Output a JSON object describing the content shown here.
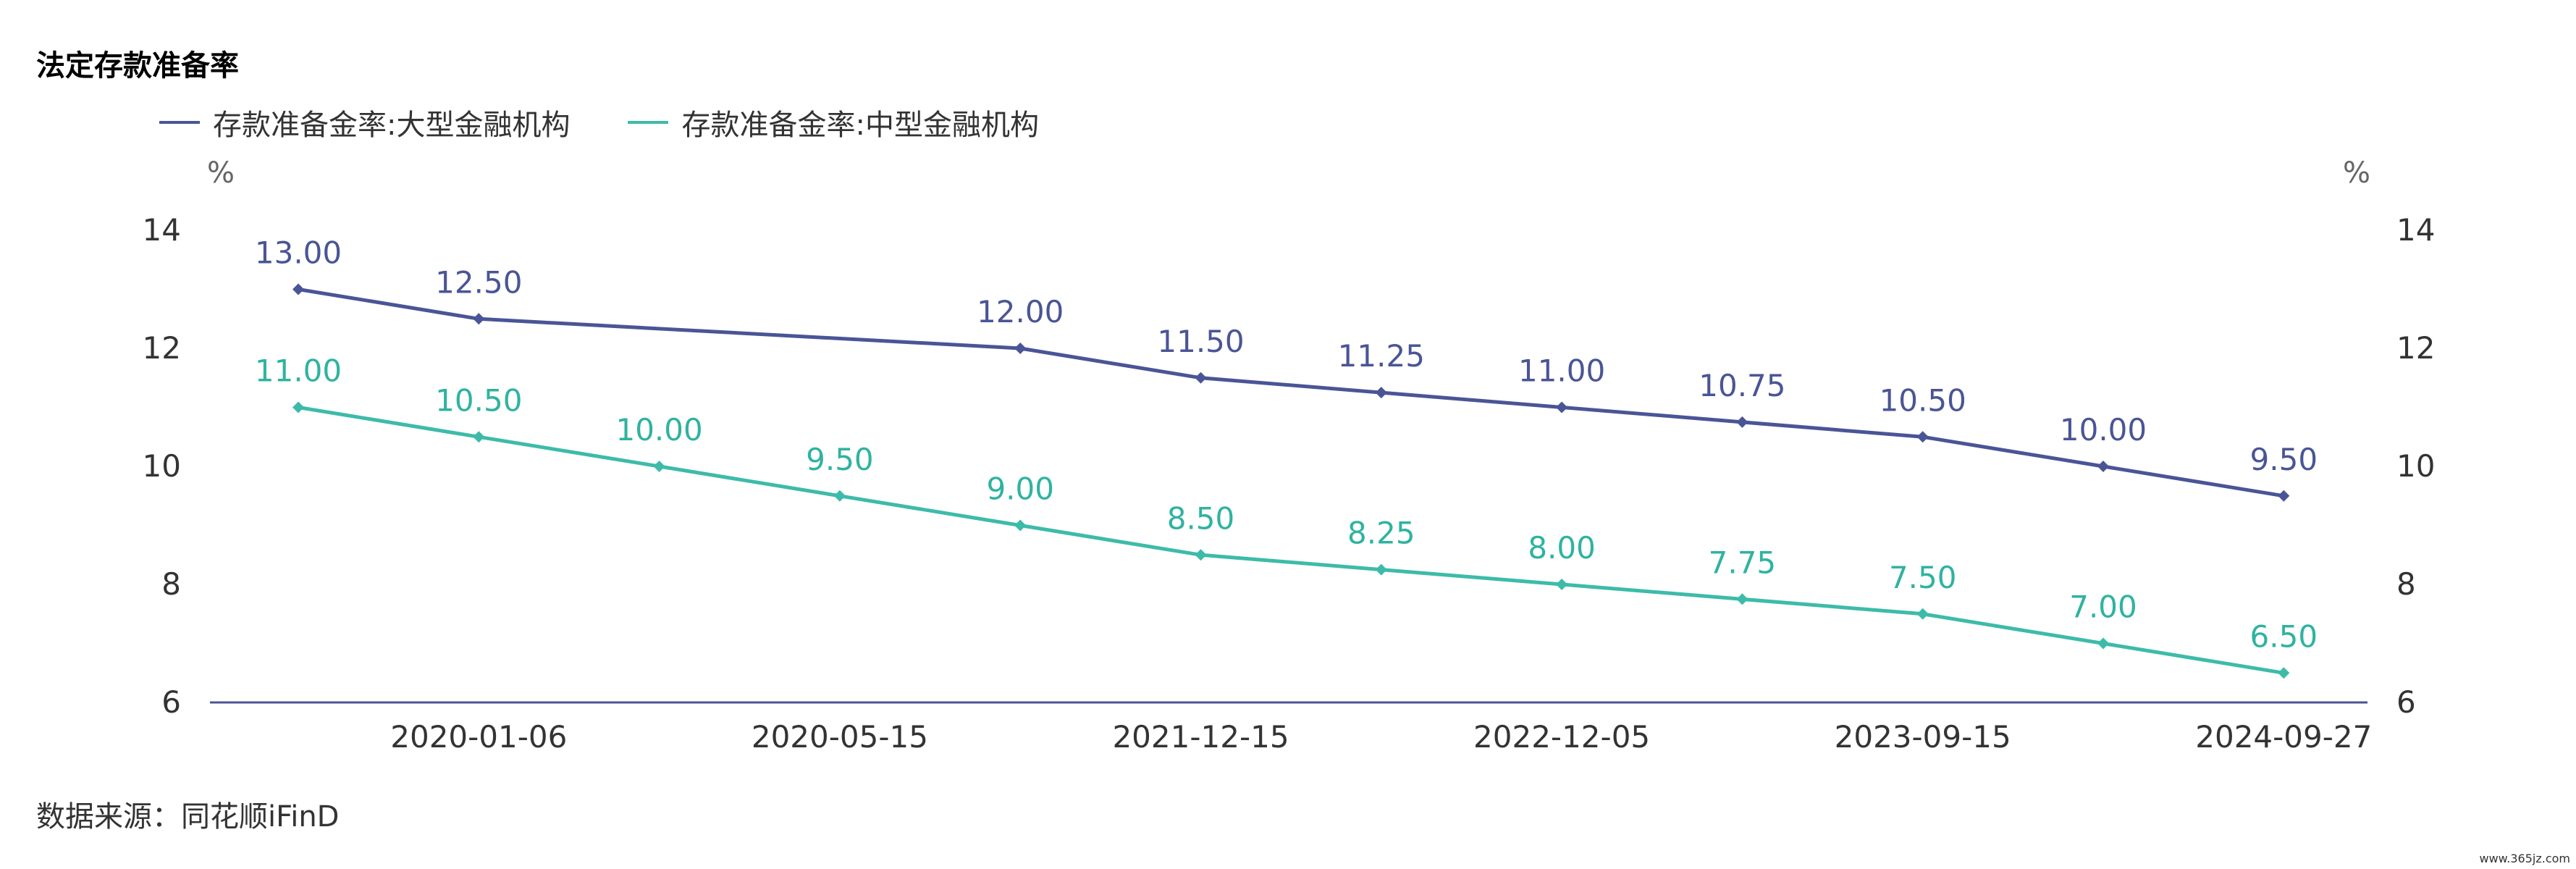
{
  "title": "法定存款准备率",
  "source_note": "数据来源：同花顺iFinD",
  "watermark": "www.365jz.com",
  "chart_data": {
    "type": "line",
    "title": "法定存款准备率",
    "ylabel_left": "%",
    "ylabel_right": "%",
    "ylim": [
      6,
      14
    ],
    "yticks": [
      6,
      8,
      10,
      12,
      14
    ],
    "x_tick_labels": [
      "2020-01-06",
      "2020-05-15",
      "2021-12-15",
      "2022-12-05",
      "2023-09-15",
      "2024-09-27"
    ],
    "x_tick_label_positions": [
      1,
      3,
      5,
      7,
      9,
      11
    ],
    "point_count": 12,
    "legend_position": "top-left",
    "grid": false,
    "series": [
      {
        "name": "存款准备金率:大型金融机构",
        "color": "#4a5596",
        "label_color": "#4a5596",
        "x": [
          0,
          1,
          4,
          5,
          6,
          7,
          8,
          9,
          10,
          11
        ],
        "values": [
          13.0,
          12.5,
          12.0,
          11.5,
          11.25,
          11.0,
          10.75,
          10.5,
          10.0,
          9.5
        ],
        "labels": [
          "13.00",
          "12.50",
          "12.00",
          "11.50",
          "11.25",
          "11.00",
          "10.75",
          "10.50",
          "10.00",
          "9.50"
        ]
      },
      {
        "name": "存款准备金率:中型金融机构",
        "color": "#3dbba9",
        "label_color": "#2fb3a0",
        "x": [
          0,
          1,
          2,
          3,
          4,
          5,
          6,
          7,
          8,
          9,
          10,
          11
        ],
        "values": [
          11.0,
          10.5,
          10.0,
          9.5,
          9.0,
          8.5,
          8.25,
          8.0,
          7.75,
          7.5,
          7.0,
          6.5
        ],
        "labels": [
          "11.00",
          "10.50",
          "10.00",
          "9.50",
          "9.00",
          "8.50",
          "8.25",
          "8.00",
          "7.75",
          "7.50",
          "7.00",
          "6.50"
        ]
      }
    ]
  }
}
